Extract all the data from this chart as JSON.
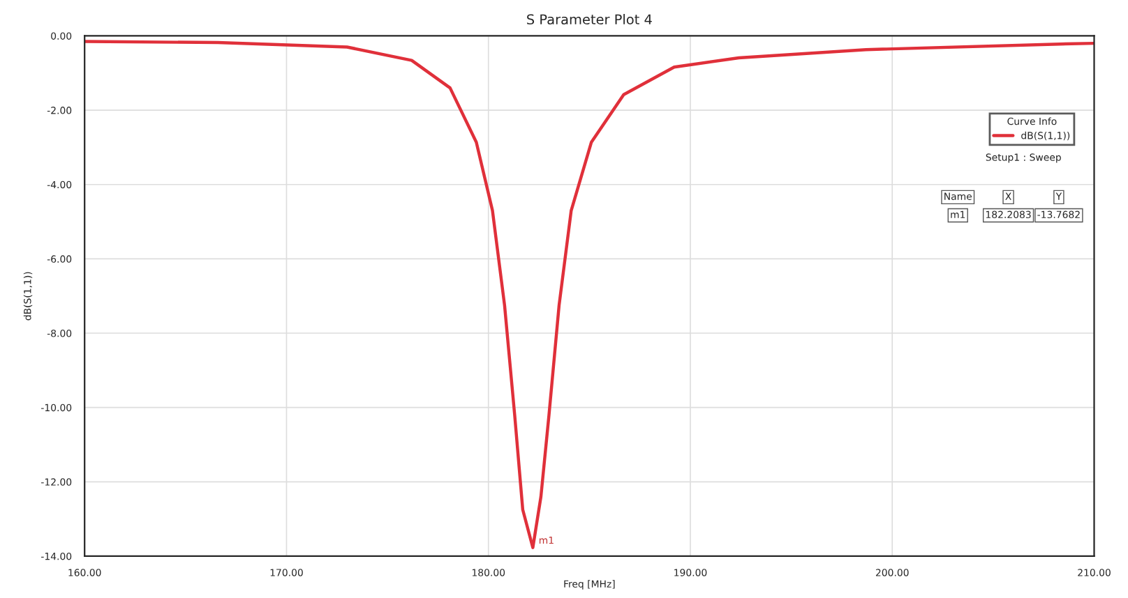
{
  "chart_data": {
    "type": "line",
    "title": "S Parameter Plot 4",
    "xlabel": "Freq [MHz]",
    "ylabel": "dB(S(1,1))",
    "x": [
      160,
      166.6,
      173.0,
      176.2,
      178.1,
      179.4,
      180.2,
      180.8,
      181.3,
      181.7,
      182.2,
      182.6,
      183.0,
      183.5,
      184.1,
      185.1,
      186.7,
      189.2,
      192.4,
      198.7,
      208.3,
      210
    ],
    "series": [
      {
        "name": "dB(S(1,1))",
        "color": "#e0303a",
        "values": [
          -0.15,
          -0.18,
          -0.3,
          -0.66,
          -1.4,
          -2.86,
          -4.7,
          -7.25,
          -10.2,
          -12.75,
          -13.77,
          -12.4,
          -10.2,
          -7.25,
          -4.7,
          -2.86,
          -1.58,
          -0.84,
          -0.59,
          -0.37,
          -0.22,
          -0.2
        ]
      }
    ],
    "legend_title": "Curve Info",
    "legend": "top right",
    "annotations": [
      {
        "text": "m1",
        "x": 182.2,
        "y": -13.77
      },
      "Setup1 : Sweep",
      "Name",
      "X",
      "Y",
      "m1",
      "182.2083",
      "-13.7682"
    ],
    "xlim": [
      160,
      210
    ],
    "xticks": [
      {
        "value": 160,
        "label": "160.00"
      },
      {
        "value": 170,
        "label": "170.00"
      },
      {
        "value": 180,
        "label": "180.00"
      },
      {
        "value": 190,
        "label": "190.00"
      },
      {
        "value": 200,
        "label": "200.00"
      },
      {
        "value": 210,
        "label": "210.00"
      }
    ],
    "ylim": [
      -14,
      0
    ],
    "yticks": [
      {
        "value": 0,
        "label": "0.00"
      },
      {
        "value": -2,
        "label": "-2.00"
      },
      {
        "value": -4,
        "label": "-4.00"
      },
      {
        "value": -6,
        "label": "-6.00"
      },
      {
        "value": -8,
        "label": "-8.00"
      },
      {
        "value": -10,
        "label": "-10.00"
      },
      {
        "value": -12,
        "label": "-12.00"
      },
      {
        "value": -14,
        "label": "-14.00"
      }
    ],
    "grid": true,
    "marker": "none",
    "line_style": "solid"
  }
}
